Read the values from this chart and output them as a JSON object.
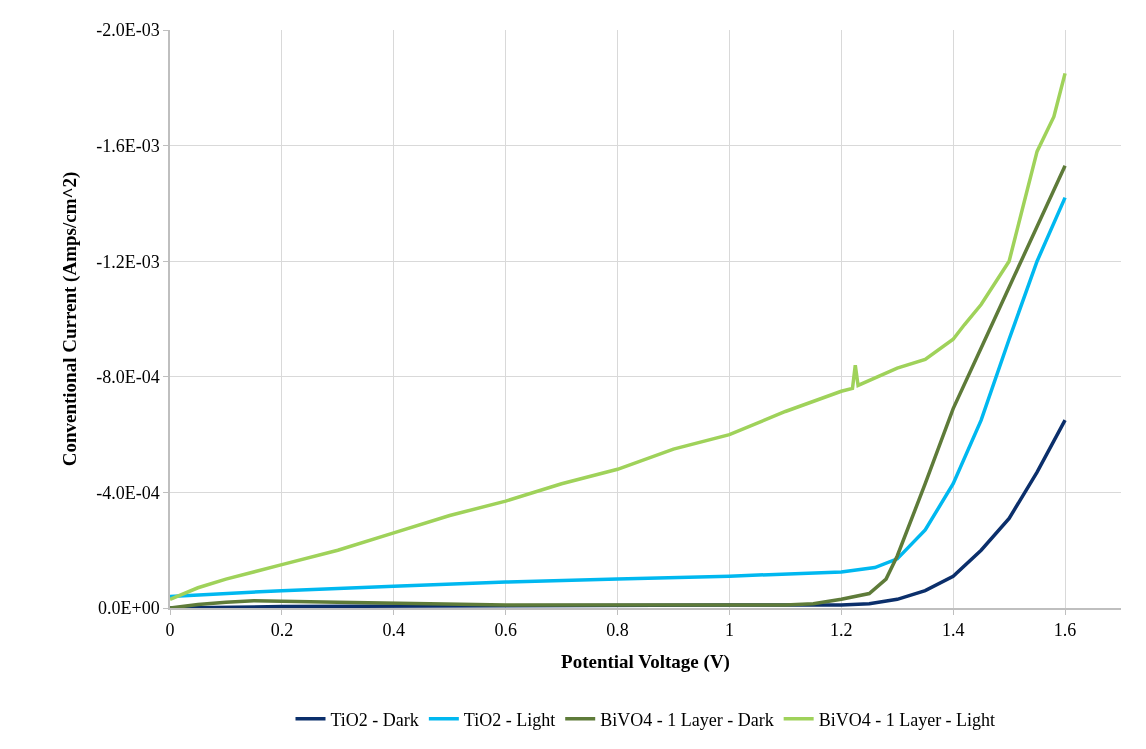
{
  "chart_data": {
    "type": "line",
    "xlabel": "Potential Voltage (V)",
    "ylabel": "Conventional Current (Amps/cm^2)",
    "xlim": [
      0,
      1.7
    ],
    "xticks": [
      0,
      0.2,
      0.4,
      0.6,
      0.8,
      1,
      1.2,
      1.4,
      1.6
    ],
    "ylim": [
      0,
      -0.002
    ],
    "yticks": [
      {
        "value": 0,
        "label": "0.0E+00"
      },
      {
        "value": -0.0004,
        "label": "-4.0E-04"
      },
      {
        "value": -0.0008,
        "label": "-8.0E-04"
      },
      {
        "value": -0.0012,
        "label": "-1.2E-03"
      },
      {
        "value": -0.0016,
        "label": "-1.6E-03"
      },
      {
        "value": -0.002,
        "label": "-2.0E-03"
      }
    ],
    "grid": true,
    "legend": "bottom",
    "marker": "none",
    "line_style": "solid",
    "series": [
      {
        "name": "TiO2 - Dark",
        "color": "#0b2f6b",
        "x": [
          0,
          0.2,
          0.6,
          1.0,
          1.2,
          1.25,
          1.3,
          1.35,
          1.4,
          1.45,
          1.5,
          1.55,
          1.6
        ],
        "values": [
          0,
          -5e-06,
          -8e-06,
          -1e-05,
          -1e-05,
          -1.5e-05,
          -3e-05,
          -6e-05,
          -0.00011,
          -0.0002,
          -0.00031,
          -0.00047,
          -0.00065
        ]
      },
      {
        "name": "TiO2 - Light",
        "color": "#00b8f0",
        "x": [
          0,
          0.2,
          0.4,
          0.6,
          0.8,
          1.0,
          1.2,
          1.26,
          1.3,
          1.35,
          1.4,
          1.45,
          1.5,
          1.55,
          1.6
        ],
        "values": [
          -4e-05,
          -6e-05,
          -7.5e-05,
          -9e-05,
          -0.0001,
          -0.00011,
          -0.000125,
          -0.00014,
          -0.00017,
          -0.00027,
          -0.00043,
          -0.00065,
          -0.00093,
          -0.0012,
          -0.00142
        ]
      },
      {
        "name": "BiVO4 - 1 Layer - Dark",
        "color": "#5e7b39",
        "x": [
          0,
          0.05,
          0.1,
          0.15,
          0.3,
          0.6,
          1.1,
          1.15,
          1.2,
          1.25,
          1.28,
          1.3,
          1.35,
          1.4,
          1.45,
          1.5,
          1.55,
          1.6
        ],
        "values": [
          0,
          -1.2e-05,
          -2e-05,
          -2.5e-05,
          -2e-05,
          -1e-05,
          -1e-05,
          -1.5e-05,
          -3e-05,
          -5e-05,
          -0.0001,
          -0.00018,
          -0.00043,
          -0.00069,
          -0.0009,
          -0.00111,
          -0.00132,
          -0.00153
        ]
      },
      {
        "name": "BiVO4 - 1 Layer - Light",
        "color": "#9fd25a",
        "x": [
          0,
          0.05,
          0.1,
          0.2,
          0.3,
          0.4,
          0.5,
          0.6,
          0.7,
          0.8,
          0.9,
          1.0,
          1.1,
          1.2,
          1.22,
          1.225,
          1.23,
          1.3,
          1.35,
          1.4,
          1.42,
          1.45,
          1.5,
          1.55,
          1.58,
          1.6
        ],
        "values": [
          -3e-05,
          -7e-05,
          -0.0001,
          -0.00015,
          -0.0002,
          -0.00026,
          -0.00032,
          -0.00037,
          -0.00043,
          -0.00048,
          -0.00055,
          -0.0006,
          -0.00068,
          -0.00075,
          -0.00076,
          -0.00084,
          -0.00077,
          -0.00083,
          -0.00086,
          -0.00093,
          -0.00098,
          -0.00105,
          -0.0012,
          -0.00158,
          -0.0017,
          -0.00185
        ]
      }
    ]
  }
}
